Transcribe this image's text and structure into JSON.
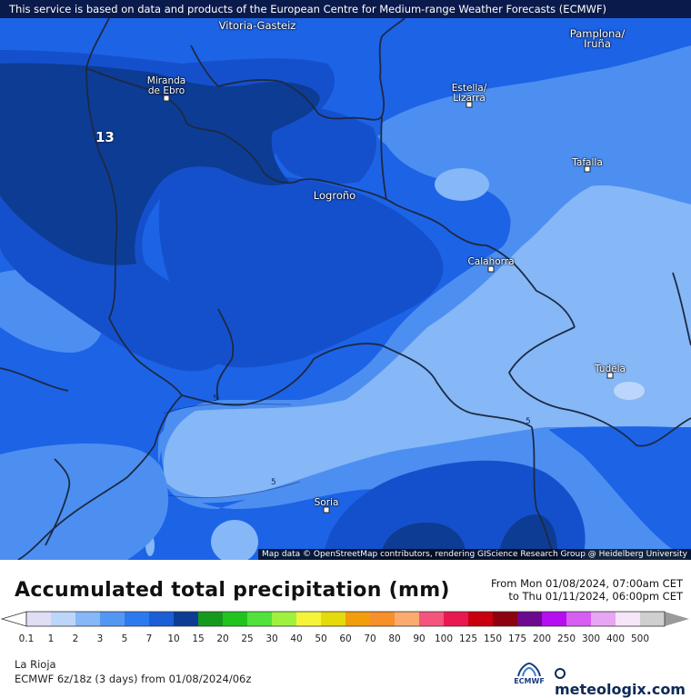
{
  "banner": "This service is based on data and products of the European Centre for Medium-range Weather Forecasts (ECMWF)",
  "attribution": "Map data © OpenStreetMap contributors, rendering GIScience Research Group @ Heidelberg University",
  "cities": {
    "vitoria": "Vitoria-Gasteiz",
    "pamplona": "Pamplona/\nIruña",
    "miranda": "Miranda\nde Ebro",
    "estella": "Estella/\nLizarra",
    "tafalla": "Tafalla",
    "logrono": "Logroño",
    "calahorra": "Calahorra",
    "tudela": "Tudela",
    "soria": "Soria"
  },
  "map_values": {
    "max_label": "13",
    "contour_1": "5",
    "contour_2": "5",
    "contour_3": "5"
  },
  "legend": {
    "title": "Accumulated total precipitation (mm)",
    "from": "From Mon 01/08/2024, 07:00am CET",
    "to": "to Thu 01/11/2024, 06:00pm CET",
    "ticks": [
      "0.1",
      "1",
      "2",
      "3",
      "5",
      "7",
      "10",
      "15",
      "20",
      "25",
      "30",
      "40",
      "50",
      "60",
      "70",
      "80",
      "90",
      "100",
      "125",
      "150",
      "175",
      "200",
      "250",
      "300",
      "400",
      "500"
    ],
    "colors": [
      "#e0def5",
      "#bcd6fb",
      "#86b7f6",
      "#5497f2",
      "#2c7af0",
      "#1b5ed6",
      "#0d3c94",
      "#169a1e",
      "#21c41e",
      "#52e23c",
      "#9ef23e",
      "#f6f43a",
      "#e4da0c",
      "#f29d0c",
      "#f78f2a",
      "#fbab6f",
      "#f5547c",
      "#e9184e",
      "#c8000d",
      "#8e0210",
      "#6b0a8e",
      "#b50ef0",
      "#d65ef3",
      "#e8a5f4",
      "#f5e6f9",
      "#cfcfcf"
    ]
  },
  "footer": {
    "region": "La Rioja",
    "model": "ECMWF 6z/18z (3 days) from 01/08/2024/06z",
    "ecmwf_logo": "ECMWF",
    "brand": "meteologix.com"
  },
  "icons": {
    "ecmwf": "ecmwf-logo-icon",
    "meteologix": "meteologix-logo-icon"
  }
}
